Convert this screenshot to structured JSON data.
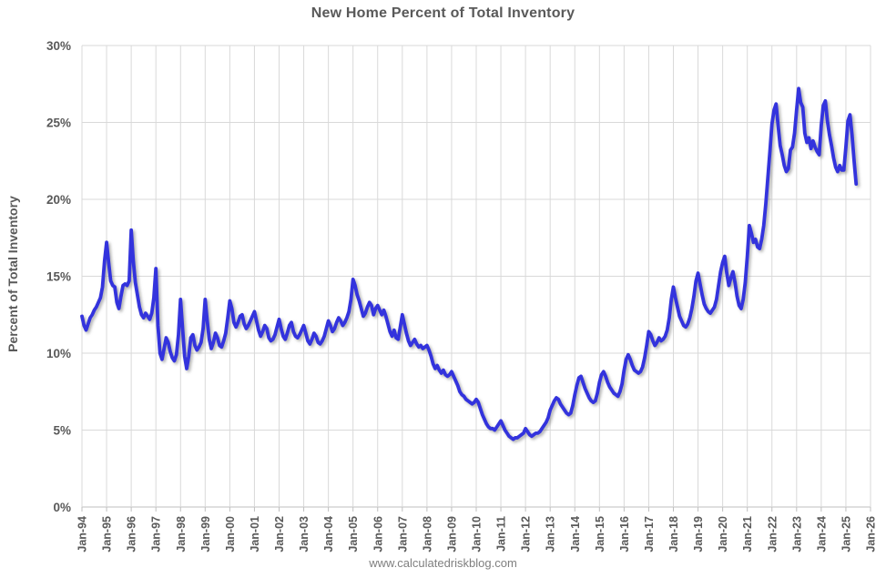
{
  "chart": {
    "title": "New Home Percent of Total Inventory",
    "y_axis_title": "Percent of Total Inventory",
    "footer": "www.calculatedriskblog.com"
  },
  "chart_data": {
    "type": "line",
    "title": "New Home Percent of Total Inventory",
    "xlabel": "",
    "ylabel": "Percent of Total Inventory",
    "footer": "www.calculatedriskblog.com",
    "grid": true,
    "legend": "none",
    "line_color": "#3333dd",
    "grid_color": "#d9d9d9",
    "axis_color": "#bfbfbf",
    "text_color": "#595959",
    "ylim": [
      0,
      30
    ],
    "y_tick_labels": [
      "0%",
      "5%",
      "10%",
      "15%",
      "20%",
      "25%",
      "30%"
    ],
    "x_tick_labels": [
      "Jan-94",
      "Jan-95",
      "Jan-96",
      "Jan-97",
      "Jan-98",
      "Jan-99",
      "Jan-00",
      "Jan-01",
      "Jan-02",
      "Jan-03",
      "Jan-04",
      "Jan-05",
      "Jan-06",
      "Jan-07",
      "Jan-08",
      "Jan-09",
      "Jan-10",
      "Jan-11",
      "Jan-12",
      "Jan-13",
      "Jan-14",
      "Jan-15",
      "Jan-16",
      "Jan-17",
      "Jan-18",
      "Jan-19",
      "Jan-20",
      "Jan-21",
      "Jan-22",
      "Jan-23",
      "Jan-24",
      "Jan-25",
      "Jan-26"
    ],
    "x_axis_span_months": 384,
    "frequency": "monthly",
    "start": "1994-01",
    "end": "2025-06",
    "series": [
      {
        "name": "New Home Percent of Total Inventory",
        "unit": "%",
        "monthly_values": [
          12.4,
          11.8,
          11.5,
          11.9,
          12.3,
          12.5,
          12.8,
          13.0,
          13.3,
          13.6,
          14.3,
          16.0,
          17.2,
          15.9,
          14.7,
          14.4,
          14.3,
          13.3,
          12.9,
          13.7,
          14.4,
          14.5,
          14.4,
          14.7,
          18.0,
          16.0,
          14.6,
          13.8,
          13.0,
          12.5,
          12.3,
          12.6,
          12.4,
          12.2,
          12.6,
          13.6,
          15.5,
          11.8,
          10.0,
          9.6,
          10.3,
          11.0,
          10.7,
          10.1,
          9.7,
          9.5,
          9.9,
          11.2,
          13.5,
          11.6,
          9.8,
          9.0,
          9.8,
          11.0,
          11.2,
          10.5,
          10.2,
          10.4,
          10.7,
          11.6,
          13.5,
          12.1,
          10.9,
          10.3,
          10.7,
          11.3,
          11.0,
          10.5,
          10.4,
          10.8,
          11.3,
          12.3,
          13.4,
          12.9,
          12.0,
          11.7,
          12.0,
          12.4,
          12.5,
          11.9,
          11.6,
          11.8,
          12.1,
          12.4,
          12.7,
          12.1,
          11.5,
          11.1,
          11.4,
          11.8,
          11.6,
          11.0,
          10.8,
          10.9,
          11.2,
          11.7,
          12.2,
          11.6,
          11.1,
          10.9,
          11.3,
          11.8,
          12.0,
          11.4,
          11.1,
          11.0,
          11.2,
          11.5,
          11.8,
          11.3,
          10.8,
          10.6,
          10.9,
          11.3,
          11.1,
          10.7,
          10.6,
          10.8,
          11.1,
          11.6,
          12.1,
          11.8,
          11.4,
          11.6,
          12.0,
          12.3,
          12.1,
          11.8,
          12.0,
          12.3,
          12.7,
          13.5,
          14.8,
          14.4,
          13.8,
          13.4,
          12.9,
          12.4,
          12.6,
          13.0,
          13.3,
          13.1,
          12.5,
          12.9,
          13.1,
          12.8,
          12.5,
          12.8,
          12.4,
          11.9,
          11.4,
          11.1,
          11.5,
          11.0,
          10.9,
          11.7,
          12.5,
          11.9,
          11.3,
          10.8,
          10.5,
          10.7,
          10.9,
          10.6,
          10.4,
          10.5,
          10.3,
          10.4,
          10.5,
          10.2,
          9.8,
          9.3,
          9.0,
          9.2,
          8.9,
          8.7,
          8.9,
          8.6,
          8.5,
          8.6,
          8.8,
          8.5,
          8.2,
          7.9,
          7.5,
          7.3,
          7.2,
          7.0,
          6.9,
          6.8,
          6.7,
          6.8,
          7.0,
          6.8,
          6.4,
          6.0,
          5.7,
          5.4,
          5.2,
          5.1,
          5.1,
          5.0,
          5.2,
          5.4,
          5.6,
          5.3,
          5.0,
          4.8,
          4.6,
          4.5,
          4.4,
          4.5,
          4.5,
          4.6,
          4.7,
          4.8,
          5.1,
          4.9,
          4.7,
          4.6,
          4.7,
          4.8,
          4.8,
          4.9,
          5.1,
          5.3,
          5.5,
          5.8,
          6.3,
          6.6,
          6.9,
          7.1,
          7.0,
          6.7,
          6.5,
          6.3,
          6.1,
          6.0,
          6.1,
          6.6,
          7.3,
          7.9,
          8.4,
          8.5,
          8.1,
          7.7,
          7.4,
          7.1,
          6.9,
          6.8,
          6.9,
          7.4,
          8.1,
          8.6,
          8.8,
          8.5,
          8.1,
          7.8,
          7.6,
          7.4,
          7.3,
          7.2,
          7.5,
          8.0,
          8.9,
          9.6,
          9.9,
          9.6,
          9.2,
          8.9,
          8.8,
          8.7,
          8.8,
          9.1,
          9.7,
          10.5,
          11.4,
          11.2,
          10.8,
          10.5,
          10.7,
          11.0,
          10.8,
          10.9,
          11.1,
          11.5,
          12.3,
          13.5,
          14.3,
          13.6,
          13.0,
          12.4,
          12.1,
          11.8,
          11.7,
          11.9,
          12.3,
          12.9,
          13.7,
          14.7,
          15.2,
          14.5,
          13.8,
          13.2,
          12.9,
          12.7,
          12.6,
          12.8,
          13.0,
          13.5,
          14.4,
          15.3,
          15.9,
          16.3,
          15.2,
          14.4,
          14.9,
          15.3,
          14.6,
          13.7,
          13.1,
          12.9,
          13.5,
          14.6,
          16.3,
          18.3,
          17.8,
          17.2,
          17.4,
          16.9,
          16.8,
          17.4,
          18.3,
          19.7,
          21.4,
          23.1,
          24.9,
          25.8,
          26.2,
          24.8,
          23.5,
          22.9,
          22.2,
          21.8,
          22.0,
          23.2,
          23.4,
          24.3,
          25.8,
          27.2,
          26.3,
          26.0,
          24.3,
          23.7,
          24.0,
          23.3,
          23.8,
          23.4,
          23.1,
          22.9,
          24.8,
          26.1,
          26.4,
          25.1,
          24.2,
          23.5,
          22.7,
          22.1,
          21.8,
          22.2,
          21.9,
          21.9,
          23.4,
          25.1,
          25.5,
          24.2,
          22.5,
          21.0
        ]
      }
    ]
  }
}
